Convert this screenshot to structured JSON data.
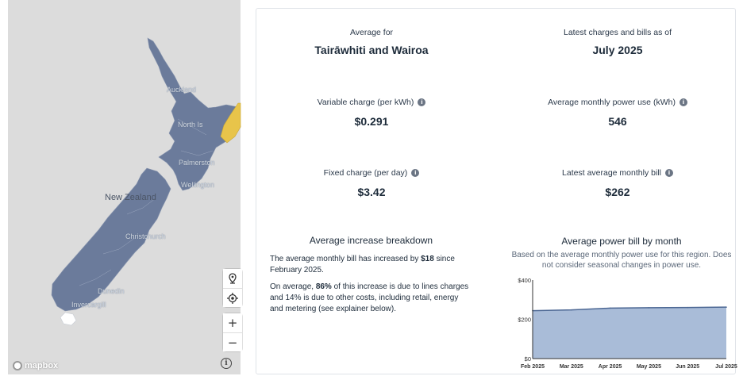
{
  "map": {
    "country_label": "New Zealand",
    "place_labels": [
      "Auckland",
      "North Is",
      "Palmerston",
      "Wellington",
      "Christchurch",
      "Dunedin",
      "Invercargill"
    ],
    "controls": {
      "locate_icon": "map-pin-icon",
      "geolocate_icon": "crosshair-icon",
      "zoom_in": "+",
      "zoom_out": "−",
      "attribution": "i"
    },
    "logo_text": "mapbox",
    "colors": {
      "region": "#6b7b9b",
      "highlight": "#e8c44a",
      "water": "#dcdcdc"
    }
  },
  "summary": {
    "region_label": "Average for",
    "region_name": "Tairāwhiti and Wairoa",
    "date_label": "Latest charges and bills as of",
    "date_value": "July 2025"
  },
  "stats": {
    "variable_charge": {
      "label": "Variable charge (per kWh)",
      "value": "$0.291"
    },
    "monthly_use": {
      "label": "Average monthly power use (kWh)",
      "value": "546"
    },
    "fixed_charge": {
      "label": "Fixed charge (per day)",
      "value": "$3.42"
    },
    "monthly_bill": {
      "label": "Latest average monthly bill",
      "value": "$262"
    }
  },
  "breakdown": {
    "title": "Average increase breakdown",
    "p1_pre": "The average monthly bill has increased by ",
    "p1_bold": "$18",
    "p1_post": " since February 2025.",
    "p2_pre": "On average, ",
    "p2_bold": "86%",
    "p2_post": " of this increase is due to lines charges and 14% is due to other costs, including retail, energy and metering (see explainer below)."
  },
  "chart": {
    "title": "Average power bill by month",
    "subtitle": "Based on the average monthly power use for this region. Does not consider seasonal changes in power use."
  },
  "chart_data": {
    "type": "area",
    "x": [
      "Feb 2025",
      "Mar 2025",
      "Apr 2025",
      "May 2025",
      "Jun 2025",
      "Jul 2025"
    ],
    "values": [
      244,
      248,
      257,
      259,
      260,
      262
    ],
    "ylim": [
      0,
      400
    ],
    "yticks": [
      "$0",
      "$200",
      "$400"
    ],
    "grid": false,
    "fill_color": "#a9bcd8",
    "line_color": "#4d6894"
  }
}
